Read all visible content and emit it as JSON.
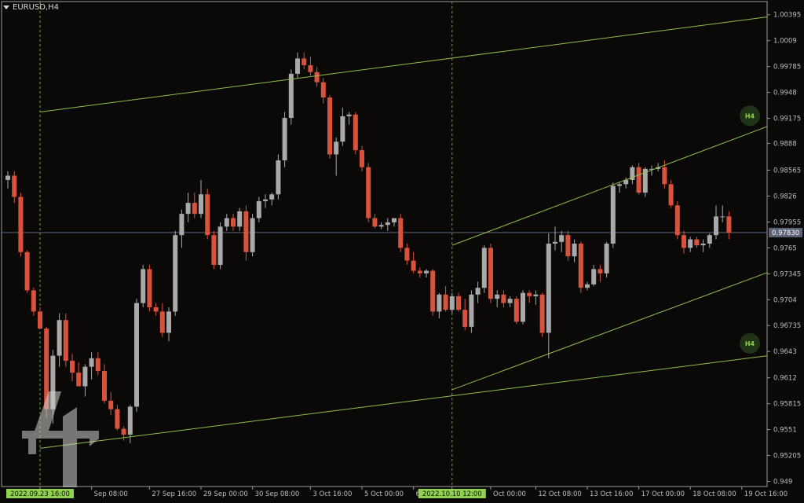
{
  "symbol_label": "EURUSD,H4",
  "colors": {
    "background": "#0b0908",
    "bull": "#a9a9a9",
    "bear": "#d9533c",
    "grid_text": "#bdbdbd",
    "trendline": "#8fbf4a",
    "vline": "#9acd32",
    "highlight_bg": "#8fd14f",
    "price_line": "#5d6477",
    "badge_bg": "#1f3416",
    "badge_text": "#8fd14f"
  },
  "chart_data": {
    "type": "candlestick",
    "symbol": "EURUSD",
    "timeframe": "H4",
    "ylim": [
      0.9484,
      1.0055
    ],
    "yticks": [
      1.00395,
      1.0009,
      0.99785,
      0.9948,
      0.99175,
      0.9888,
      0.98565,
      0.9826,
      0.97955,
      0.9765,
      0.97345,
      0.9704,
      0.96735,
      0.9643,
      0.9612,
      0.95815,
      0.9551,
      0.95205,
      0.949
    ],
    "ytick_labels": [
      "1.00395",
      "1.0009",
      "0.99785",
      "0.9948",
      "0.99175",
      "0.9888",
      "0.98565",
      "0.9826",
      "0.97955",
      "0.9765",
      "0.97345",
      "0.9704",
      "0.96735",
      "0.9643",
      "0.9612",
      "0.95815",
      "0.9551",
      "0.95205",
      "0.949"
    ],
    "current_price": 0.9783,
    "current_price_label": "0.97830",
    "xticks": [
      {
        "label": "2022.09.23 16:00",
        "bar": 5,
        "highlight": true
      },
      {
        "label": "Sep 08:00",
        "bar": 13,
        "highlight": false
      },
      {
        "label": "27 Sep 16:00",
        "bar": 22,
        "highlight": false
      },
      {
        "label": "29 Sep 00:00",
        "bar": 30,
        "highlight": false
      },
      {
        "label": "30 Sep 08:00",
        "bar": 38,
        "highlight": false
      },
      {
        "label": "3 Oct 16:00",
        "bar": 47,
        "highlight": false
      },
      {
        "label": "5 Oct 00:00",
        "bar": 55,
        "highlight": false
      },
      {
        "label": "6 Oct 08:00",
        "bar": 63,
        "highlight": false
      },
      {
        "label": "2022.10.10 12:00",
        "bar": 69,
        "highlight": true
      },
      {
        "label": "Oct 00:00",
        "bar": 75,
        "highlight": false
      },
      {
        "label": "12 Oct 08:00",
        "bar": 82,
        "highlight": false
      },
      {
        "label": "13 Oct 16:00",
        "bar": 90,
        "highlight": false
      },
      {
        "label": "17 Oct 00:00",
        "bar": 98,
        "highlight": false
      },
      {
        "label": "18 Oct 08:00",
        "bar": 106,
        "highlight": false
      },
      {
        "label": "19 Oct 16:00",
        "bar": 114,
        "highlight": false
      }
    ],
    "vlines_bars": [
      5,
      69
    ],
    "candles": [
      [
        0.9845,
        0.9855,
        0.9835,
        0.985
      ],
      [
        0.985,
        0.9855,
        0.9818,
        0.9825
      ],
      [
        0.9825,
        0.983,
        0.9755,
        0.976
      ],
      [
        0.976,
        0.9762,
        0.9712,
        0.9715
      ],
      [
        0.9715,
        0.9718,
        0.9685,
        0.969
      ],
      [
        0.969,
        0.9695,
        0.967,
        0.967
      ],
      [
        0.967,
        0.9672,
        0.9565,
        0.9575
      ],
      [
        0.9575,
        0.9645,
        0.9558,
        0.9638
      ],
      [
        0.9638,
        0.9688,
        0.9625,
        0.968
      ],
      [
        0.968,
        0.9688,
        0.9625,
        0.9632
      ],
      [
        0.9632,
        0.964,
        0.9608,
        0.9618
      ],
      [
        0.9618,
        0.963,
        0.9602,
        0.9602
      ],
      [
        0.9602,
        0.9628,
        0.959,
        0.9625
      ],
      [
        0.9625,
        0.9642,
        0.961,
        0.9635
      ],
      [
        0.9635,
        0.9642,
        0.9615,
        0.962
      ],
      [
        0.962,
        0.9628,
        0.9582,
        0.9585
      ],
      [
        0.9585,
        0.9595,
        0.9568,
        0.9575
      ],
      [
        0.9575,
        0.958,
        0.955,
        0.9552
      ],
      [
        0.9552,
        0.9555,
        0.9538,
        0.9545
      ],
      [
        0.9545,
        0.958,
        0.9535,
        0.9578
      ],
      [
        0.9578,
        0.9705,
        0.9572,
        0.97
      ],
      [
        0.97,
        0.9745,
        0.9695,
        0.974
      ],
      [
        0.974,
        0.9745,
        0.969,
        0.9695
      ],
      [
        0.9695,
        0.97,
        0.9685,
        0.969
      ],
      [
        0.969,
        0.97,
        0.966,
        0.9665
      ],
      [
        0.9665,
        0.9695,
        0.9655,
        0.969
      ],
      [
        0.969,
        0.9785,
        0.9685,
        0.978
      ],
      [
        0.978,
        0.981,
        0.9765,
        0.9805
      ],
      [
        0.9805,
        0.983,
        0.9795,
        0.9818
      ],
      [
        0.9818,
        0.983,
        0.98,
        0.9805
      ],
      [
        0.9805,
        0.9845,
        0.98,
        0.9828
      ],
      [
        0.9828,
        0.9835,
        0.9775,
        0.978
      ],
      [
        0.978,
        0.9785,
        0.974,
        0.9745
      ],
      [
        0.9745,
        0.9795,
        0.974,
        0.979
      ],
      [
        0.979,
        0.9805,
        0.9785,
        0.98
      ],
      [
        0.98,
        0.9805,
        0.9785,
        0.979
      ],
      [
        0.979,
        0.9812,
        0.9785,
        0.9808
      ],
      [
        0.9808,
        0.9815,
        0.975,
        0.976
      ],
      [
        0.976,
        0.9805,
        0.9755,
        0.98
      ],
      [
        0.98,
        0.9825,
        0.9795,
        0.982
      ],
      [
        0.982,
        0.9828,
        0.9812,
        0.9822
      ],
      [
        0.9822,
        0.983,
        0.9815,
        0.9828
      ],
      [
        0.9828,
        0.9875,
        0.9822,
        0.9868
      ],
      [
        0.9868,
        0.9925,
        0.986,
        0.9918
      ],
      [
        0.9918,
        0.9975,
        0.991,
        0.997
      ],
      [
        0.997,
        0.9995,
        0.9965,
        0.9988
      ],
      [
        0.9988,
        0.9995,
        0.9975,
        0.998
      ],
      [
        0.998,
        0.999,
        0.9968,
        0.9972
      ],
      [
        0.9972,
        0.9978,
        0.9955,
        0.996
      ],
      [
        0.996,
        0.9965,
        0.9935,
        0.9942
      ],
      [
        0.9942,
        0.9945,
        0.987,
        0.9875
      ],
      [
        0.9875,
        0.9895,
        0.985,
        0.989
      ],
      [
        0.989,
        0.993,
        0.9885,
        0.992
      ],
      [
        0.992,
        0.9925,
        0.991,
        0.9922
      ],
      [
        0.9922,
        0.9925,
        0.9875,
        0.988
      ],
      [
        0.988,
        0.9885,
        0.9855,
        0.986
      ],
      [
        0.986,
        0.9865,
        0.9795,
        0.98
      ],
      [
        0.98,
        0.9805,
        0.9788,
        0.979
      ],
      [
        0.979,
        0.9795,
        0.9787,
        0.9792
      ],
      [
        0.9792,
        0.98,
        0.9785,
        0.9795
      ],
      [
        0.9795,
        0.98,
        0.979,
        0.98
      ],
      [
        0.98,
        0.9805,
        0.976,
        0.9765
      ],
      [
        0.9765,
        0.977,
        0.9745,
        0.975
      ],
      [
        0.975,
        0.976,
        0.9735,
        0.9738
      ],
      [
        0.9738,
        0.9742,
        0.973,
        0.9735
      ],
      [
        0.9735,
        0.974,
        0.973,
        0.9738
      ],
      [
        0.9738,
        0.974,
        0.9685,
        0.969
      ],
      [
        0.969,
        0.9712,
        0.9682,
        0.971
      ],
      [
        0.971,
        0.972,
        0.969,
        0.9692
      ],
      [
        0.9692,
        0.9712,
        0.9688,
        0.9708
      ],
      [
        0.9708,
        0.9712,
        0.969,
        0.9692
      ],
      [
        0.9692,
        0.9705,
        0.9668,
        0.9672
      ],
      [
        0.9672,
        0.9715,
        0.9665,
        0.971
      ],
      [
        0.971,
        0.9725,
        0.97,
        0.9718
      ],
      [
        0.9718,
        0.9768,
        0.9712,
        0.9765
      ],
      [
        0.9765,
        0.977,
        0.97,
        0.9705
      ],
      [
        0.9705,
        0.9715,
        0.9695,
        0.971
      ],
      [
        0.971,
        0.9715,
        0.9695,
        0.97
      ],
      [
        0.97,
        0.9708,
        0.9695,
        0.9705
      ],
      [
        0.9705,
        0.9708,
        0.9675,
        0.9678
      ],
      [
        0.9678,
        0.9715,
        0.9675,
        0.9712
      ],
      [
        0.9712,
        0.9715,
        0.97,
        0.9708
      ],
      [
        0.9708,
        0.9715,
        0.9698,
        0.971
      ],
      [
        0.971,
        0.9712,
        0.966,
        0.9665
      ],
      [
        0.9665,
        0.9782,
        0.9635,
        0.977
      ],
      [
        0.977,
        0.979,
        0.9762,
        0.9772
      ],
      [
        0.9772,
        0.9785,
        0.976,
        0.978
      ],
      [
        0.978,
        0.9785,
        0.975,
        0.9755
      ],
      [
        0.9755,
        0.9775,
        0.9748,
        0.977
      ],
      [
        0.977,
        0.9772,
        0.9712,
        0.9718
      ],
      [
        0.9718,
        0.9725,
        0.9715,
        0.9722
      ],
      [
        0.9722,
        0.9745,
        0.972,
        0.974
      ],
      [
        0.974,
        0.9745,
        0.9725,
        0.9735
      ],
      [
        0.9735,
        0.9772,
        0.973,
        0.977
      ],
      [
        0.977,
        0.9842,
        0.9765,
        0.9838
      ],
      [
        0.9838,
        0.9842,
        0.983,
        0.984
      ],
      [
        0.984,
        0.9848,
        0.9835,
        0.9845
      ],
      [
        0.9845,
        0.9862,
        0.984,
        0.986
      ],
      [
        0.986,
        0.9865,
        0.9828,
        0.983
      ],
      [
        0.983,
        0.986,
        0.9825,
        0.9858
      ],
      [
        0.9858,
        0.9862,
        0.985,
        0.9858
      ],
      [
        0.9858,
        0.9865,
        0.9855,
        0.986
      ],
      [
        0.986,
        0.9868,
        0.9835,
        0.984
      ],
      [
        0.984,
        0.9845,
        0.9812,
        0.9815
      ],
      [
        0.9815,
        0.982,
        0.9775,
        0.978
      ],
      [
        0.978,
        0.9785,
        0.9758,
        0.9765
      ],
      [
        0.9765,
        0.9778,
        0.976,
        0.9775
      ],
      [
        0.9775,
        0.9778,
        0.9765,
        0.9768
      ],
      [
        0.9768,
        0.9775,
        0.976,
        0.977
      ],
      [
        0.977,
        0.9782,
        0.9765,
        0.978
      ],
      [
        0.978,
        0.9815,
        0.9775,
        0.9802
      ],
      [
        0.9802,
        0.9815,
        0.9795,
        0.9802
      ],
      [
        0.9802,
        0.9808,
        0.9775,
        0.9783
      ]
    ],
    "trendlines": [
      {
        "from": [
          5,
          0.9925
        ],
        "to": [
          118,
          1.0037
        ]
      },
      {
        "from": [
          69,
          0.9768
        ],
        "to": [
          118,
          0.9908
        ]
      },
      {
        "from": [
          69,
          0.9598
        ],
        "to": [
          118,
          0.9736
        ]
      },
      {
        "from": [
          5,
          0.9529
        ],
        "to": [
          118,
          0.9638
        ]
      }
    ],
    "badges": [
      {
        "label": "H4",
        "price": 0.99205
      },
      {
        "label": "H4",
        "price": 0.96525
      }
    ]
  }
}
